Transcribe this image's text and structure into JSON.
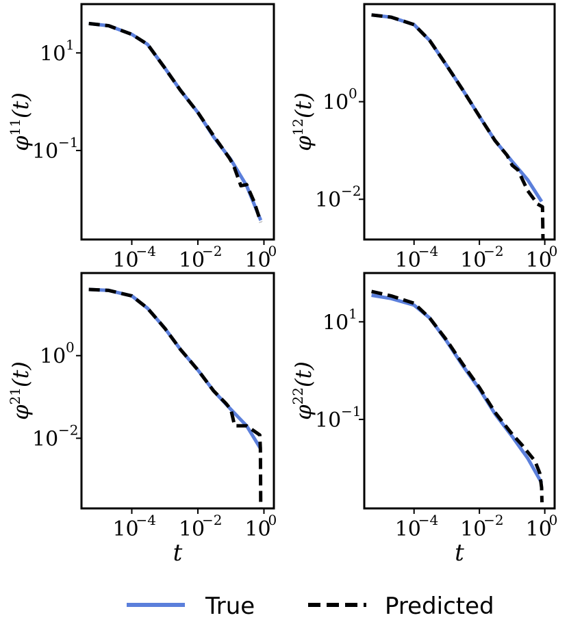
{
  "chart_data": [
    {
      "type": "line",
      "xlabel": "",
      "ylabel": "φ¹¹(t)",
      "ylabel_base": "φ",
      "ylabel_sup": "11",
      "ylabel_arg": "(t)",
      "x_scale": "log",
      "y_scale": "log",
      "xlim": [
        3e-06,
        2.0
      ],
      "ylim": [
        0.0015,
        100
      ],
      "xticks": [
        {
          "v": 0.0001,
          "label": "10",
          "sup": "−4"
        },
        {
          "v": 0.01,
          "label": "10",
          "sup": "−2"
        },
        {
          "v": 1,
          "label": "10",
          "sup": "0"
        }
      ],
      "yticks": [
        {
          "v": 10,
          "label": "10",
          "sup": "1"
        },
        {
          "v": 0.1,
          "label": "10",
          "sup": "−1"
        }
      ],
      "grid": false,
      "series": [
        {
          "name": "True",
          "x": [
            5e-06,
            2e-05,
            0.0001,
            0.0003,
            0.001,
            0.003,
            0.01,
            0.03,
            0.1,
            0.3,
            0.8
          ],
          "y": [
            40,
            36,
            24,
            15,
            4.9,
            1.7,
            0.6,
            0.19,
            0.065,
            0.019,
            0.0037
          ]
        },
        {
          "name": "Predicted",
          "x": [
            5e-06,
            2e-05,
            0.0001,
            0.0003,
            0.001,
            0.003,
            0.01,
            0.03,
            0.09,
            0.12,
            0.2,
            0.3,
            0.5,
            0.8
          ],
          "y": [
            40,
            36,
            24,
            15,
            4.9,
            1.7,
            0.6,
            0.2,
            0.07,
            0.05,
            0.019,
            0.02,
            0.009,
            0.0034
          ]
        }
      ]
    },
    {
      "type": "line",
      "xlabel": "",
      "ylabel": "φ¹²(t)",
      "ylabel_base": "φ",
      "ylabel_sup": "12",
      "ylabel_arg": "(t)",
      "x_scale": "log",
      "y_scale": "log",
      "xlim": [
        3e-06,
        2.0
      ],
      "ylim": [
        0.0015,
        100
      ],
      "xticks": [
        {
          "v": 0.0001,
          "label": "10",
          "sup": "−4"
        },
        {
          "v": 0.01,
          "label": "10",
          "sup": "−2"
        },
        {
          "v": 1,
          "label": "10",
          "sup": "0"
        }
      ],
      "yticks": [
        {
          "v": 1,
          "label": "10",
          "sup": "0"
        },
        {
          "v": 0.01,
          "label": "10",
          "sup": "−2"
        }
      ],
      "grid": false,
      "series": [
        {
          "name": "True",
          "x": [
            5e-06,
            2e-05,
            0.0001,
            0.0003,
            0.001,
            0.003,
            0.01,
            0.03,
            0.1,
            0.3,
            0.8
          ],
          "y": [
            60,
            54,
            38,
            18,
            5.5,
            1.8,
            0.5,
            0.16,
            0.06,
            0.025,
            0.009
          ]
        },
        {
          "name": "Predicted",
          "x": [
            5e-06,
            2e-05,
            0.0001,
            0.0003,
            0.001,
            0.003,
            0.01,
            0.03,
            0.07,
            0.1,
            0.15,
            0.3,
            0.6,
            0.85,
            0.88
          ],
          "y": [
            60,
            54,
            38,
            18,
            5.5,
            1.8,
            0.5,
            0.16,
            0.08,
            0.05,
            0.04,
            0.015,
            0.008,
            0.007,
            0.0015
          ]
        }
      ]
    },
    {
      "type": "line",
      "xlabel": "t",
      "ylabel": "φ²¹(t)",
      "ylabel_base": "φ",
      "ylabel_sup": "21",
      "ylabel_arg": "(t)",
      "x_scale": "log",
      "y_scale": "log",
      "xlim": [
        3e-06,
        2.0
      ],
      "ylim": [
        0.0002,
        100
      ],
      "xticks": [
        {
          "v": 0.0001,
          "label": "10",
          "sup": "−4"
        },
        {
          "v": 0.01,
          "label": "10",
          "sup": "−2"
        },
        {
          "v": 1,
          "label": "10",
          "sup": "0"
        }
      ],
      "yticks": [
        {
          "v": 1,
          "label": "10",
          "sup": "0"
        },
        {
          "v": 0.01,
          "label": "10",
          "sup": "−2"
        }
      ],
      "grid": false,
      "series": [
        {
          "name": "True",
          "x": [
            5e-06,
            2e-05,
            0.0001,
            0.0003,
            0.001,
            0.003,
            0.01,
            0.03,
            0.1,
            0.3,
            0.8
          ],
          "y": [
            40,
            38,
            28,
            14,
            4.6,
            1.4,
            0.45,
            0.14,
            0.05,
            0.02,
            0.0055
          ]
        },
        {
          "name": "Predicted",
          "x": [
            5e-06,
            2e-05,
            0.0001,
            0.0003,
            0.001,
            0.003,
            0.01,
            0.03,
            0.07,
            0.1,
            0.13,
            0.3,
            0.5,
            0.75,
            0.78,
            0.8
          ],
          "y": [
            40,
            38,
            28,
            14,
            4.6,
            1.4,
            0.45,
            0.14,
            0.07,
            0.05,
            0.02,
            0.02,
            0.015,
            0.012,
            0.0055,
            0.0002
          ]
        }
      ]
    },
    {
      "type": "line",
      "xlabel": "t",
      "ylabel": "φ²²(t)",
      "ylabel_base": "φ",
      "ylabel_sup": "22",
      "ylabel_arg": "(t)",
      "x_scale": "log",
      "y_scale": "log",
      "xlim": [
        3e-06,
        2.0
      ],
      "ylim": [
        0.0015,
        100
      ],
      "xticks": [
        {
          "v": 0.0001,
          "label": "10",
          "sup": "−4"
        },
        {
          "v": 0.01,
          "label": "10",
          "sup": "−2"
        },
        {
          "v": 1,
          "label": "10",
          "sup": "0"
        }
      ],
      "yticks": [
        {
          "v": 10,
          "label": "10",
          "sup": "1"
        },
        {
          "v": 0.1,
          "label": "10",
          "sup": "−1"
        }
      ],
      "grid": false,
      "series": [
        {
          "name": "True",
          "x": [
            5e-06,
            2e-05,
            0.0001,
            0.0003,
            0.001,
            0.003,
            0.01,
            0.03,
            0.1,
            0.3,
            0.8
          ],
          "y": [
            35,
            30,
            22,
            12,
            4.0,
            1.3,
            0.42,
            0.13,
            0.045,
            0.016,
            0.005
          ]
        },
        {
          "name": "Predicted",
          "x": [
            5e-06,
            2e-05,
            0.0001,
            0.0003,
            0.001,
            0.003,
            0.01,
            0.03,
            0.1,
            0.2,
            0.5,
            0.7,
            0.8,
            0.82
          ],
          "y": [
            42,
            34,
            24,
            12,
            4.2,
            1.4,
            0.45,
            0.14,
            0.05,
            0.03,
            0.014,
            0.008,
            0.004,
            0.002
          ]
        }
      ]
    }
  ],
  "legend": {
    "placement": "bottom",
    "entries": [
      {
        "label": "True",
        "color": "#5b7fdb",
        "style": "solid"
      },
      {
        "label": "Predicted",
        "color": "#000000",
        "style": "dashed"
      }
    ]
  }
}
